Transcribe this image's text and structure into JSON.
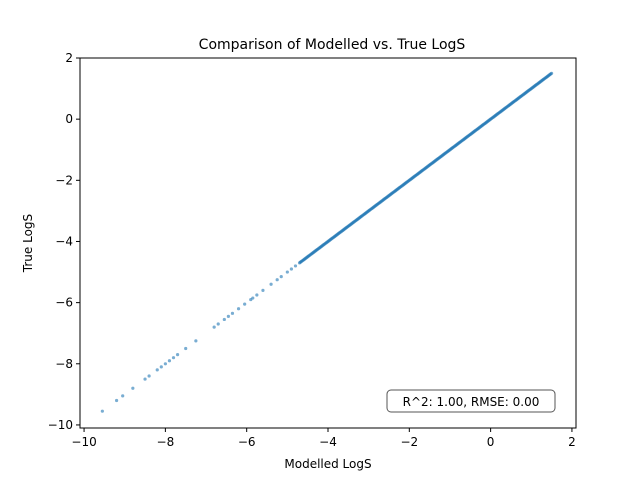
{
  "chart_data": {
    "type": "scatter",
    "title": "Comparison of Modelled vs. True LogS",
    "xlabel": "Modelled LogS",
    "ylabel": "True LogS",
    "xlim": [
      -10.1,
      2.1
    ],
    "ylim": [
      -10.1,
      2.0
    ],
    "xticks": [
      -10,
      -8,
      -6,
      -4,
      -2,
      0,
      2
    ],
    "yticks": [
      -10,
      -8,
      -6,
      -4,
      -2,
      0,
      2
    ],
    "xtick_labels": [
      "−10",
      "−8",
      "−6",
      "−4",
      "−2",
      "0",
      "2"
    ],
    "ytick_labels": [
      "−10",
      "−8",
      "−6",
      "−4",
      "−2",
      "0",
      "2"
    ],
    "grid": false,
    "annotation": "R^2: 1.00, RMSE: 0.00",
    "annotation_position": "bottom-right",
    "point_color": "#1f77b4",
    "series": [
      {
        "sparse_points": [
          [
            -9.55,
            -9.55
          ],
          [
            -9.2,
            -9.2
          ],
          [
            -9.05,
            -9.05
          ],
          [
            -8.8,
            -8.8
          ],
          [
            -8.5,
            -8.5
          ],
          [
            -8.4,
            -8.4
          ],
          [
            -8.2,
            -8.2
          ],
          [
            -8.1,
            -8.1
          ],
          [
            -8.0,
            -8.0
          ],
          [
            -7.9,
            -7.9
          ],
          [
            -7.8,
            -7.8
          ],
          [
            -7.7,
            -7.7
          ],
          [
            -7.5,
            -7.5
          ],
          [
            -7.25,
            -7.25
          ],
          [
            -6.8,
            -6.8
          ],
          [
            -6.7,
            -6.7
          ],
          [
            -6.55,
            -6.55
          ],
          [
            -6.45,
            -6.45
          ],
          [
            -6.35,
            -6.35
          ],
          [
            -6.2,
            -6.2
          ],
          [
            -6.05,
            -6.05
          ],
          [
            -5.9,
            -5.9
          ],
          [
            -5.85,
            -5.85
          ],
          [
            -5.75,
            -5.75
          ],
          [
            -5.6,
            -5.6
          ],
          [
            -5.4,
            -5.4
          ],
          [
            -5.25,
            -5.25
          ],
          [
            -5.15,
            -5.15
          ],
          [
            -5.0,
            -5.0
          ],
          [
            -4.9,
            -4.9
          ],
          [
            -4.8,
            -4.8
          ]
        ],
        "dense_range": [
          -4.7,
          1.5
        ],
        "dense_step": 0.02
      }
    ]
  }
}
